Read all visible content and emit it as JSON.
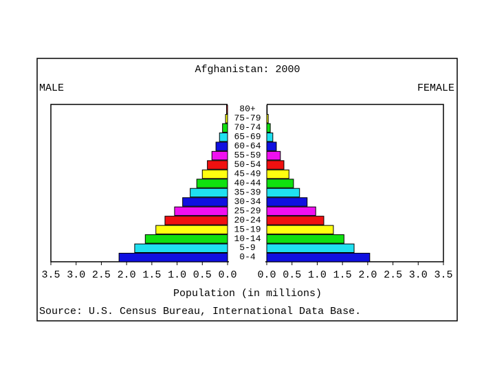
{
  "chart_data": {
    "type": "pyramid",
    "title": "Afghanistan: 2000",
    "categories": [
      "0-4",
      "5-9",
      "10-14",
      "15-19",
      "20-24",
      "25-29",
      "30-34",
      "35-39",
      "40-44",
      "45-49",
      "50-54",
      "55-59",
      "60-64",
      "65-69",
      "70-74",
      "75-79",
      "80+"
    ],
    "colors": [
      "#1010e0",
      "#20e0f0",
      "#10e010",
      "#ffff10",
      "#f01010",
      "#f010f0",
      "#1010e0",
      "#20e0f0",
      "#10e010",
      "#ffff10",
      "#f01010",
      "#f010f0",
      "#1010e0",
      "#20e0f0",
      "#10e010",
      "#ffff10",
      "#f01010"
    ],
    "series": [
      {
        "name": "MALE",
        "values": [
          2.15,
          1.84,
          1.63,
          1.42,
          1.24,
          1.05,
          0.89,
          0.74,
          0.61,
          0.5,
          0.4,
          0.31,
          0.23,
          0.16,
          0.1,
          0.04,
          0.02
        ]
      },
      {
        "name": "FEMALE",
        "values": [
          2.04,
          1.73,
          1.53,
          1.32,
          1.13,
          0.97,
          0.8,
          0.65,
          0.53,
          0.44,
          0.34,
          0.27,
          0.19,
          0.12,
          0.07,
          0.03,
          0.01
        ]
      }
    ],
    "xlim": [
      0,
      3.5
    ],
    "xticks": [
      {
        "value": 0,
        "label": "0.0"
      },
      {
        "value": 0.5,
        "label": "0.5"
      },
      {
        "value": 1,
        "label": "1.0"
      },
      {
        "value": 1.5,
        "label": "1.5"
      },
      {
        "value": 2,
        "label": "2.0"
      },
      {
        "value": 2.5,
        "label": "2.5"
      },
      {
        "value": 3,
        "label": "3.0"
      },
      {
        "value": 3.5,
        "label": "3.5"
      }
    ],
    "xlabel": "Population (in millions)",
    "source": "Source: U.S. Census Bureau, International Data Base."
  }
}
